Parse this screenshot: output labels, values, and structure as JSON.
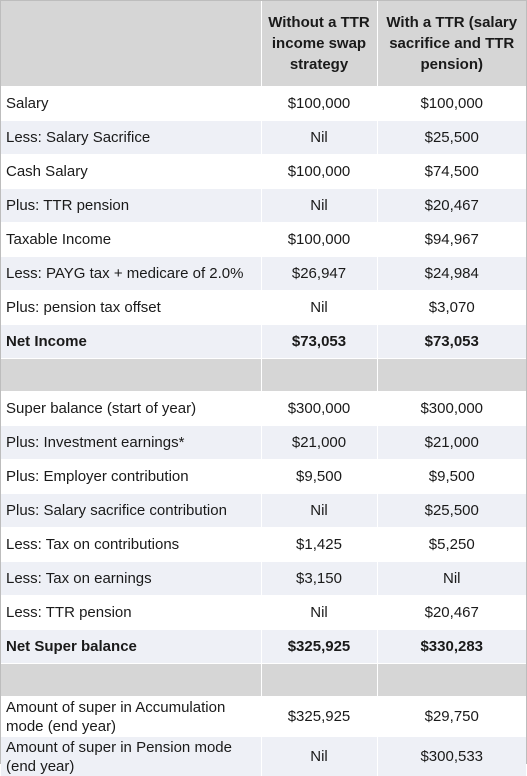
{
  "header": {
    "col1": "",
    "col2_line1": "Without a TTR",
    "col2_line2": "income swap",
    "col2_line3": "strategy",
    "col3_line1": "With a TTR (salary",
    "col3_line2": "sacrifice and TTR",
    "col3_line3": "pension)"
  },
  "income": [
    {
      "label": "Salary",
      "without": "$100,000",
      "with": "$100,000"
    },
    {
      "label": "Less: Salary Sacrifice",
      "without": "Nil",
      "with": "$25,500"
    },
    {
      "label": "Cash Salary",
      "without": "$100,000",
      "with": "$74,500"
    },
    {
      "label": "Plus: TTR pension",
      "without": "Nil",
      "with": "$20,467"
    },
    {
      "label": "Taxable Income",
      "without": "$100,000",
      "with": "$94,967"
    },
    {
      "label": "Less: PAYG tax + medicare of 2.0%",
      "without": "$26,947",
      "with": "$24,984"
    },
    {
      "label": "Plus: pension tax offset",
      "without": "Nil",
      "with": "$3,070"
    },
    {
      "label": "Net Income",
      "without": "$73,053",
      "with": "$73,053"
    }
  ],
  "super": [
    {
      "label": "Super balance (start of year)",
      "without": "$300,000",
      "with": "$300,000"
    },
    {
      "label": "Plus: Investment earnings*",
      "without": "$21,000",
      "with": "$21,000"
    },
    {
      "label": "Plus: Employer contribution",
      "without": "$9,500",
      "with": "$9,500"
    },
    {
      "label": "Plus: Salary sacrifice contribution",
      "without": "Nil",
      "with": "$25,500"
    },
    {
      "label": "Less: Tax on contributions",
      "without": "$1,425",
      "with": "$5,250"
    },
    {
      "label": "Less: Tax on earnings",
      "without": "$3,150",
      "with": "Nil"
    },
    {
      "label": "Less: TTR pension",
      "without": "Nil",
      "with": "$20,467"
    },
    {
      "label": "Net Super balance",
      "without": "$325,925",
      "with": "$330,283"
    }
  ],
  "modes": [
    {
      "label_line1": "Amount of super in Accumulation",
      "label_line2": "mode (end year)",
      "without": "$325,925",
      "with": "$29,750"
    },
    {
      "label_line1": "Amount of super in Pension mode",
      "label_line2": "(end year)",
      "without": "Nil",
      "with": "$300,533"
    }
  ]
}
